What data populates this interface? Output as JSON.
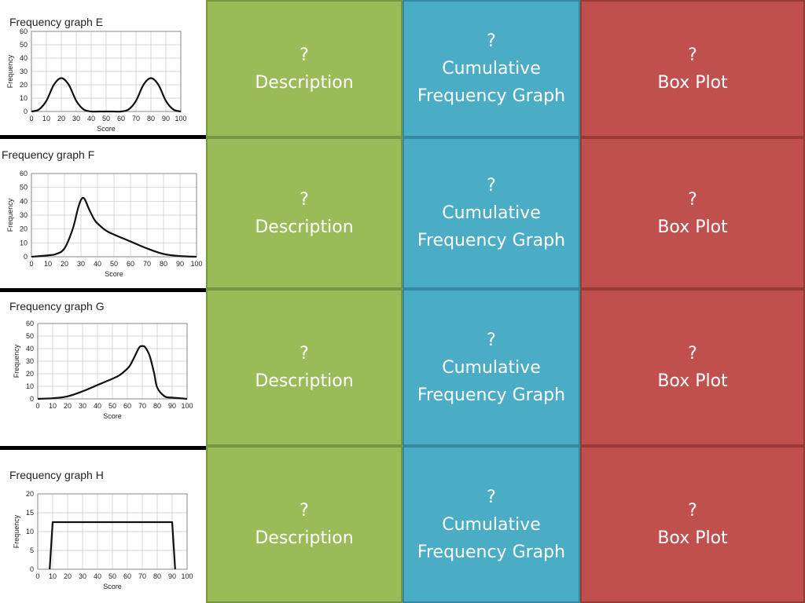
{
  "colors": {
    "description": "#9bbb59",
    "cumulative": "#4bacc6",
    "boxplot": "#c0504d",
    "curve": "#111111",
    "grid": "#c8c8c8"
  },
  "cards": [
    {
      "question": "?",
      "description": "Description",
      "cumulative_line1": "Cumulative",
      "cumulative_line2": "Frequency Graph",
      "boxplot": "Box Plot"
    },
    {
      "question": "?",
      "description": "Description",
      "cumulative_line1": "Cumulative",
      "cumulative_line2": "Frequency Graph",
      "boxplot": "Box Plot"
    },
    {
      "question": "?",
      "description": "Description",
      "cumulative_line1": "Cumulative",
      "cumulative_line2": "Frequency Graph",
      "boxplot": "Box Plot"
    },
    {
      "question": "?",
      "description": "Description",
      "cumulative_line1": "Cumulative",
      "cumulative_line2": "Frequency Graph",
      "boxplot": "Box Plot"
    }
  ],
  "chart_data": [
    {
      "type": "line",
      "title": "Frequency graph E",
      "xlabel": "Score",
      "ylabel": "Frequency",
      "xlim": [
        0,
        100
      ],
      "ylim": [
        0,
        60
      ],
      "xticks": [
        0,
        10,
        20,
        30,
        40,
        50,
        60,
        70,
        80,
        90,
        100
      ],
      "yticks": [
        0,
        10,
        20,
        30,
        40,
        50,
        60
      ],
      "grid": true,
      "x": [
        0,
        5,
        10,
        15,
        20,
        25,
        30,
        35,
        40,
        45,
        50,
        55,
        60,
        65,
        70,
        75,
        80,
        85,
        90,
        95,
        100
      ],
      "y": [
        0,
        1.5,
        8,
        20,
        25,
        20,
        8,
        1.5,
        0,
        0,
        0,
        0,
        0,
        1.5,
        8,
        20,
        25,
        20,
        8,
        1.5,
        0
      ]
    },
    {
      "type": "line",
      "title": "Frequency graph F",
      "xlabel": "Score",
      "ylabel": "Frequency",
      "xlim": [
        0,
        100
      ],
      "ylim": [
        0,
        60
      ],
      "xticks": [
        0,
        10,
        20,
        30,
        40,
        50,
        60,
        70,
        80,
        90,
        100
      ],
      "yticks": [
        0,
        10,
        20,
        30,
        40,
        50,
        60
      ],
      "grid": true,
      "x": [
        0,
        10,
        15,
        20,
        25,
        28,
        30,
        32,
        35,
        38,
        40,
        45,
        50,
        60,
        70,
        80,
        90,
        100
      ],
      "y": [
        0,
        1,
        2,
        6,
        20,
        34,
        41,
        42,
        34,
        27,
        24,
        19,
        16,
        11,
        6,
        2,
        0.5,
        0
      ]
    },
    {
      "type": "line",
      "title": "Frequency graph G",
      "xlabel": "Score",
      "ylabel": "Frequency",
      "xlim": [
        0,
        100
      ],
      "ylim": [
        0,
        60
      ],
      "xticks": [
        0,
        10,
        20,
        30,
        40,
        50,
        60,
        70,
        80,
        90,
        100
      ],
      "yticks": [
        0,
        10,
        20,
        30,
        40,
        50,
        60
      ],
      "grid": true,
      "x": [
        0,
        10,
        20,
        30,
        40,
        50,
        55,
        60,
        62,
        65,
        68,
        70,
        72,
        75,
        78,
        80,
        85,
        90,
        100
      ],
      "y": [
        0,
        0.5,
        2,
        6,
        11,
        16,
        19,
        24,
        27,
        34,
        41,
        42,
        41,
        34,
        20,
        9,
        2,
        1,
        0
      ]
    },
    {
      "type": "line",
      "title": "Frequency graph H",
      "xlabel": "Score",
      "ylabel": "Frequency",
      "xlim": [
        0,
        100
      ],
      "ylim": [
        0,
        20
      ],
      "xticks": [
        0,
        10,
        20,
        30,
        40,
        50,
        60,
        70,
        80,
        90,
        100
      ],
      "yticks": [
        0,
        5,
        10,
        15,
        20
      ],
      "grid": true,
      "x": [
        8,
        10,
        90,
        92
      ],
      "y": [
        0,
        12.5,
        12.5,
        0
      ]
    }
  ]
}
